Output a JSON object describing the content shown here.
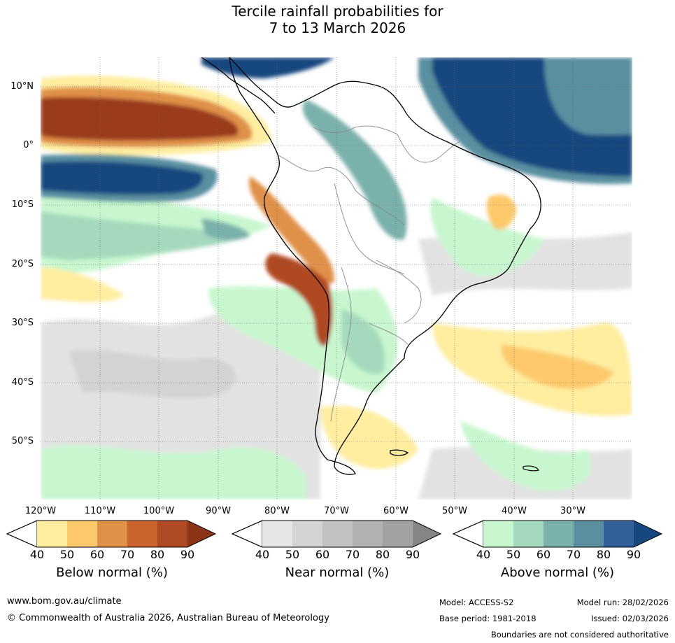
{
  "title_line1": "Tercile rainfall probabilities for",
  "title_line2": "7 to 13 March 2026",
  "lat_labels": [
    "10°N",
    "0°",
    "10°S",
    "20°S",
    "30°S",
    "40°S",
    "50°S"
  ],
  "lon_labels": [
    "120°W",
    "110°W",
    "100°W",
    "90°W",
    "80°W",
    "70°W",
    "60°W",
    "50°W",
    "40°W",
    "30°W"
  ],
  "legend": {
    "below": {
      "title": "Below normal (%)",
      "ticks": [
        "40",
        "50",
        "60",
        "70",
        "80",
        "90"
      ],
      "colors": [
        "#ffeea0",
        "#fdc96a",
        "#e09148",
        "#cc6430",
        "#b04a24",
        "#8c3418"
      ]
    },
    "near": {
      "title": "Near normal (%)",
      "ticks": [
        "40",
        "50",
        "60",
        "70",
        "80",
        "90"
      ],
      "colors": [
        "#e6e6e6",
        "#d4d4d4",
        "#c2c2c2",
        "#b2b2b2",
        "#a2a2a2",
        "#858585"
      ]
    },
    "above": {
      "title": "Above normal (%)",
      "ticks": [
        "40",
        "50",
        "60",
        "70",
        "80",
        "90"
      ],
      "colors": [
        "#c8f7cf",
        "#a5d9bd",
        "#7ab1aa",
        "#5a8fa0",
        "#33609a",
        "#17477f"
      ]
    }
  },
  "footer": {
    "website": "www.bom.gov.au/climate",
    "copyright": "© Commonwealth of Australia 2026, Australian Bureau of Meteorology",
    "model": "Model: ACCESS-S2",
    "model_run": "Model run: 28/02/2026",
    "base_period": "Base period: 1981-2018",
    "issued": "Issued: 02/03/2026",
    "disclaimer": "Boundaries are not considered authoritative"
  }
}
